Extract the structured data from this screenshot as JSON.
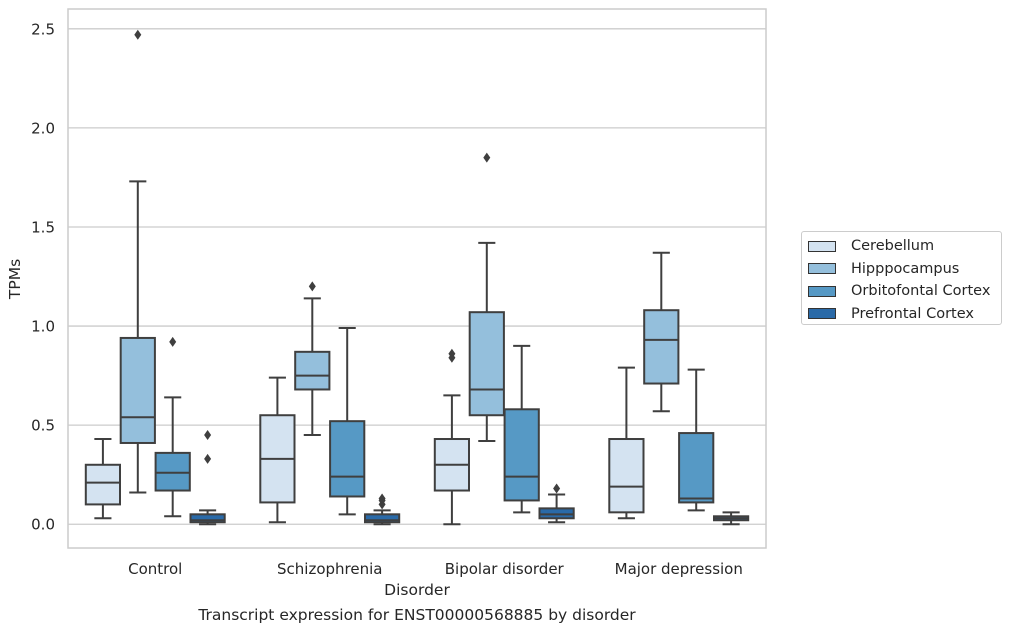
{
  "caption": "Transcript expression for ENST00000568885 by disorder",
  "chart_data": {
    "type": "box",
    "xlabel": "Disorder",
    "ylabel": "TPMs",
    "ylim": [
      -0.12,
      2.6
    ],
    "yticks": [
      "0.0",
      "0.5",
      "1.0",
      "1.5",
      "2.0",
      "2.5"
    ],
    "grid": "horizontal",
    "legend_position": "right",
    "categories": [
      "Control",
      "Schizophrenia",
      "Bipolar disorder",
      "Major depression"
    ],
    "series": [
      {
        "name": "Cerebellum",
        "color": "#d4e3f1",
        "boxes": [
          {
            "q1": 0.1,
            "median": 0.21,
            "q3": 0.3,
            "whisker_low": 0.03,
            "whisker_high": 0.43,
            "outliers": []
          },
          {
            "q1": 0.11,
            "median": 0.33,
            "q3": 0.55,
            "whisker_low": 0.01,
            "whisker_high": 0.74,
            "outliers": []
          },
          {
            "q1": 0.17,
            "median": 0.3,
            "q3": 0.43,
            "whisker_low": 0.0,
            "whisker_high": 0.65,
            "outliers": [
              0.84,
              0.86
            ]
          },
          {
            "q1": 0.06,
            "median": 0.19,
            "q3": 0.43,
            "whisker_low": 0.03,
            "whisker_high": 0.79,
            "outliers": []
          }
        ]
      },
      {
        "name": "Hipppocampus",
        "color": "#94bfdc",
        "boxes": [
          {
            "q1": 0.41,
            "median": 0.54,
            "q3": 0.94,
            "whisker_low": 0.16,
            "whisker_high": 1.73,
            "outliers": [
              2.47
            ]
          },
          {
            "q1": 0.68,
            "median": 0.75,
            "q3": 0.87,
            "whisker_low": 0.45,
            "whisker_high": 1.14,
            "outliers": [
              1.2
            ]
          },
          {
            "q1": 0.55,
            "median": 0.68,
            "q3": 1.07,
            "whisker_low": 0.42,
            "whisker_high": 1.42,
            "outliers": [
              1.85
            ]
          },
          {
            "q1": 0.71,
            "median": 0.93,
            "q3": 1.08,
            "whisker_low": 0.57,
            "whisker_high": 1.37,
            "outliers": []
          }
        ]
      },
      {
        "name": "Orbitofontal Cortex",
        "color": "#5699c5",
        "boxes": [
          {
            "q1": 0.17,
            "median": 0.26,
            "q3": 0.36,
            "whisker_low": 0.04,
            "whisker_high": 0.64,
            "outliers": [
              0.92
            ]
          },
          {
            "q1": 0.14,
            "median": 0.24,
            "q3": 0.52,
            "whisker_low": 0.05,
            "whisker_high": 0.99,
            "outliers": []
          },
          {
            "q1": 0.12,
            "median": 0.24,
            "q3": 0.58,
            "whisker_low": 0.06,
            "whisker_high": 0.9,
            "outliers": []
          },
          {
            "q1": 0.11,
            "median": 0.13,
            "q3": 0.46,
            "whisker_low": 0.07,
            "whisker_high": 0.78,
            "outliers": []
          }
        ]
      },
      {
        "name": "Prefrontal Cortex",
        "color": "#2a6aa8",
        "boxes": [
          {
            "q1": 0.01,
            "median": 0.02,
            "q3": 0.05,
            "whisker_low": 0.0,
            "whisker_high": 0.07,
            "outliers": [
              0.33,
              0.45
            ]
          },
          {
            "q1": 0.01,
            "median": 0.02,
            "q3": 0.05,
            "whisker_low": 0.0,
            "whisker_high": 0.07,
            "outliers": [
              0.1,
              0.12,
              0.13
            ]
          },
          {
            "q1": 0.03,
            "median": 0.05,
            "q3": 0.08,
            "whisker_low": 0.01,
            "whisker_high": 0.15,
            "outliers": [
              0.18
            ]
          },
          {
            "q1": 0.02,
            "median": 0.03,
            "q3": 0.04,
            "whisker_low": 0.0,
            "whisker_high": 0.06,
            "outliers": []
          }
        ]
      }
    ]
  }
}
